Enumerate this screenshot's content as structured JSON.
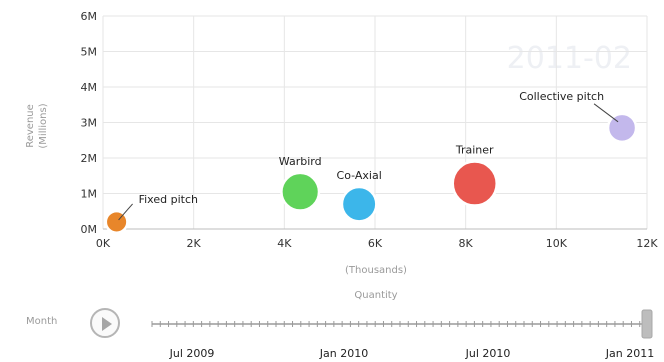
{
  "chart_data": {
    "type": "scatter",
    "variant": "bubble",
    "title": "",
    "xlabel": "Quantity",
    "xunit": "(Thousands)",
    "ylabel": "Revenue",
    "yunit": "(Millions)",
    "xlim": [
      0,
      12000
    ],
    "ylim": [
      0,
      6000000
    ],
    "x_ticks": [
      0,
      2000,
      4000,
      6000,
      8000,
      10000,
      12000
    ],
    "x_tick_labels": [
      "0K",
      "2K",
      "4K",
      "6K",
      "8K",
      "10K",
      "12K"
    ],
    "y_ticks": [
      0,
      1000000,
      2000000,
      3000000,
      4000000,
      5000000,
      6000000
    ],
    "y_tick_labels": [
      "0M",
      "1M",
      "2M",
      "3M",
      "4M",
      "5M",
      "6M"
    ],
    "grid": true,
    "legend": "none",
    "watermark": "2011-02",
    "points": [
      {
        "name": "Fixed pitch",
        "x": 300,
        "y": 200000,
        "size": 3,
        "color": "#e8862a",
        "label_pos": "upper-right",
        "leader": true
      },
      {
        "name": "Warbird",
        "x": 4350,
        "y": 1050000,
        "size": 8,
        "color": "#5fd35a",
        "label_pos": "top",
        "leader": false
      },
      {
        "name": "Co-Axial",
        "x": 5650,
        "y": 700000,
        "size": 7,
        "color": "#3cb6ea",
        "label_pos": "top",
        "leader": false
      },
      {
        "name": "Trainer",
        "x": 8200,
        "y": 1280000,
        "size": 10,
        "color": "#e8574f",
        "label_pos": "top",
        "leader": false
      },
      {
        "name": "Collective pitch",
        "x": 11450,
        "y": 2850000,
        "size": 5,
        "color": "#c3b8ec",
        "label_pos": "upper-left",
        "leader": true
      }
    ]
  },
  "play_axis": {
    "label": "Month",
    "dates": [
      "Jul 2009",
      "Jan 2010",
      "Jul 2010",
      "Jan 2011"
    ],
    "current": "2011-02",
    "position": 1.0
  }
}
